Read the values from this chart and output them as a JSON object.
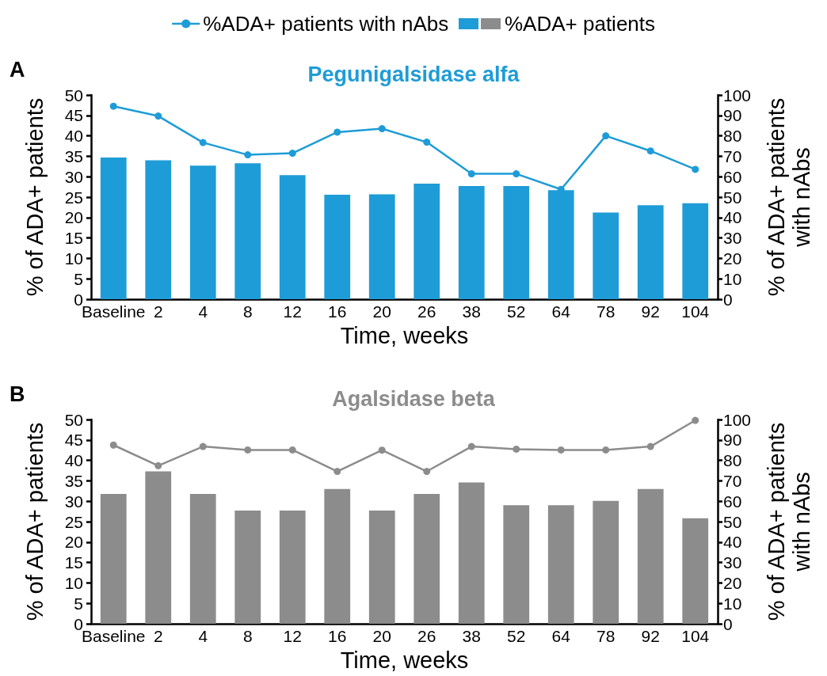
{
  "chart_data": [
    {
      "type": "bar",
      "title": "Pegunigalsidase alfa",
      "xlabel": "Time, weeks",
      "ylabel": "% of ADA+ patients",
      "y2label": "% of ADA+ patients with nAbs",
      "annotations": [
        "A"
      ],
      "categories": [
        "Baseline",
        "2",
        "4",
        "8",
        "12",
        "16",
        "20",
        "26",
        "38",
        "52",
        "64",
        "78",
        "92",
        "104"
      ],
      "series": [
        {
          "name": "%ADA+ patients with nAbs",
          "type": "line",
          "axis": "y2",
          "color": "#1e9cd7",
          "values": [
            94.5,
            89.7,
            76.7,
            70.7,
            71.5,
            81.8,
            83.5,
            76.9,
            61.4,
            61.4,
            53.8,
            80.0,
            72.6,
            63.6
          ]
        },
        {
          "color": "#1e9cd7",
          "values": [
            34.7,
            34.0,
            32.7,
            33.3,
            30.4,
            25.6,
            25.7,
            28.3,
            27.7,
            27.7,
            26.7,
            21.2,
            23.0,
            23.5
          ]
        }
      ],
      "ylim": [
        0,
        50
      ],
      "yticks": [
        0,
        5,
        10,
        15,
        20,
        25,
        30,
        35,
        40,
        45,
        50
      ],
      "y2lim": [
        0,
        100
      ],
      "y2ticks": [
        0,
        10,
        20,
        30,
        40,
        50,
        60,
        70,
        80,
        90,
        100
      ],
      "legend": "top",
      "marker": "circle",
      "line_style": "solid"
    },
    {
      "type": "bar",
      "title": "Agalsidase beta",
      "xlabel": "Time, weeks",
      "ylabel": "% of ADA+ patients",
      "y2label": "% of ADA+ patients with nAbs",
      "annotations": [
        "B"
      ],
      "categories": [
        "Baseline",
        "2",
        "4",
        "8",
        "12",
        "16",
        "20",
        "26",
        "38",
        "52",
        "64",
        "78",
        "92",
        "104"
      ],
      "series": [
        {
          "type": "line",
          "axis": "y2",
          "color": "#8c8c8c",
          "values": [
            87.5,
            77.4,
            86.8,
            85.1,
            85.1,
            74.6,
            85.0,
            74.6,
            86.8,
            85.5,
            85.1,
            85.1,
            86.8,
            99.6
          ]
        },
        {
          "name": "%ADA+ patients",
          "color": "#8c8c8c",
          "values": [
            31.8,
            37.3,
            31.8,
            27.7,
            27.7,
            33.0,
            27.7,
            31.8,
            34.6,
            29.0,
            29.0,
            30.1,
            33.0,
            25.8
          ]
        }
      ],
      "ylim": [
        0,
        50
      ],
      "yticks": [
        0,
        5,
        10,
        15,
        20,
        25,
        30,
        35,
        40,
        45,
        50
      ],
      "y2lim": [
        0,
        100
      ],
      "y2ticks": [
        0,
        10,
        20,
        30,
        40,
        50,
        60,
        70,
        80,
        90,
        100
      ],
      "legend": "top",
      "marker": "circle",
      "line_style": "solid"
    }
  ]
}
